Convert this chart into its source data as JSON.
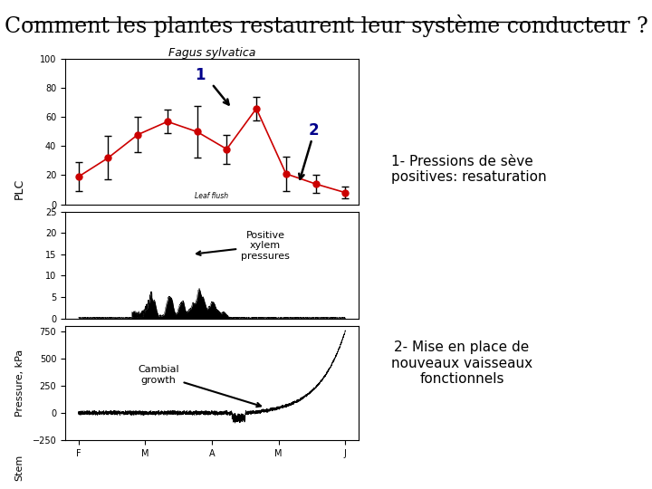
{
  "title": "Comment les plantes restaurent leur système conducteur ?",
  "bg_color": "#ffffff",
  "title_fontsize": 17,
  "text1_title": "1- Pressions de sève\npositives: resaturation",
  "text2_title": "2- Mise en place de\nnouveaux vaisseaux\nfonctionnels",
  "fagus_label": "Fagus sylvatica",
  "plc_ylabel": "PLC",
  "pressure_ylabel": "Pressure, kPa",
  "stem_ylabel": "Stem",
  "xtick_labels": [
    "F",
    "M",
    "A",
    "M",
    "J"
  ],
  "plot1_yticks": [
    0,
    20,
    40,
    60,
    80,
    100
  ],
  "plot1_ylim": [
    0,
    100
  ],
  "plot2_yticks": [
    0,
    5,
    10,
    15,
    20,
    25
  ],
  "plot2_ylim": [
    0,
    25
  ],
  "plot3_yticks": [
    -250,
    0,
    250,
    500,
    750
  ],
  "plot3_ylim": [
    -250,
    800
  ],
  "annotation1": "Positive\nxylem\npressures",
  "annotation2": "Cambial\ngrowth",
  "label1": "1",
  "label2": "2",
  "leaf_flush_label": "Leaf flush",
  "arrow_color": "#000000",
  "number_color": "#00008B",
  "dot_color": "#cc0000",
  "line_color": "#000000"
}
